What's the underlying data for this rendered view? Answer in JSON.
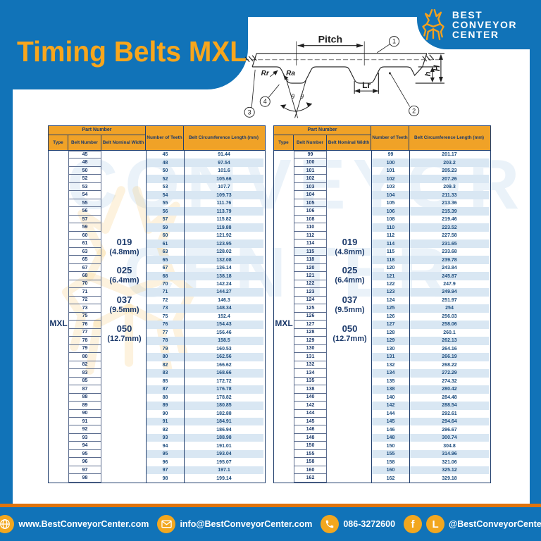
{
  "page": {
    "title": "Timing Belts MXL"
  },
  "brand": {
    "line1": "BEST",
    "line2": "CONVEYOR",
    "line3": "CENTER"
  },
  "diagram": {
    "labels": {
      "pitch": "Pitch",
      "rr": "Rr",
      "ra": "Ra",
      "lr": "Lr",
      "big_h": "H",
      "small_h": "h",
      "theta": "θ"
    },
    "callouts": [
      "1",
      "2",
      "3",
      "4"
    ]
  },
  "table_header": {
    "part_number": "Part Number",
    "type": "Type",
    "belt_number": "Belt Number",
    "belt_nominal_width": "Belt Nominal Width",
    "number_of_teeth": "Number of Teeth",
    "belt_circumference": "Belt Circumference Length (mm)"
  },
  "type_label": "MXL",
  "widths": [
    {
      "code": "019",
      "mm": "(4.8mm)"
    },
    {
      "code": "025",
      "mm": "(6.4mm)"
    },
    {
      "code": "037",
      "mm": "(9.5mm)"
    },
    {
      "code": "050",
      "mm": "(12.7mm)"
    }
  ],
  "tables": [
    {
      "rows": [
        [
          45,
          "91.44"
        ],
        [
          48,
          "97.54"
        ],
        [
          50,
          "101.6"
        ],
        [
          52,
          "105.66"
        ],
        [
          53,
          "107.7"
        ],
        [
          54,
          "109.73"
        ],
        [
          55,
          "111.76"
        ],
        [
          56,
          "113.79"
        ],
        [
          57,
          "115.82"
        ],
        [
          59,
          "119.88"
        ],
        [
          60,
          "121.92"
        ],
        [
          61,
          "123.95"
        ],
        [
          63,
          "128.02"
        ],
        [
          65,
          "132.08"
        ],
        [
          67,
          "136.14"
        ],
        [
          68,
          "138.18"
        ],
        [
          70,
          "142.24"
        ],
        [
          71,
          "144.27"
        ],
        [
          72,
          "146.3"
        ],
        [
          73,
          "148.34"
        ],
        [
          75,
          "152.4"
        ],
        [
          76,
          "154.43"
        ],
        [
          77,
          "156.46"
        ],
        [
          78,
          "158.5"
        ],
        [
          79,
          "160.53"
        ],
        [
          80,
          "162.56"
        ],
        [
          82,
          "166.62"
        ],
        [
          83,
          "168.66"
        ],
        [
          85,
          "172.72"
        ],
        [
          87,
          "176.78"
        ],
        [
          88,
          "178.82"
        ],
        [
          89,
          "180.85"
        ],
        [
          90,
          "182.88"
        ],
        [
          91,
          "184.91"
        ],
        [
          92,
          "186.94"
        ],
        [
          93,
          "188.98"
        ],
        [
          94,
          "191.01"
        ],
        [
          95,
          "193.04"
        ],
        [
          96,
          "195.07"
        ],
        [
          97,
          "197.1"
        ],
        [
          98,
          "199.14"
        ]
      ]
    },
    {
      "rows": [
        [
          99,
          "201.17"
        ],
        [
          100,
          "203.2"
        ],
        [
          101,
          "205.23"
        ],
        [
          102,
          "207.26"
        ],
        [
          103,
          "209.3"
        ],
        [
          104,
          "211.33"
        ],
        [
          105,
          "213.36"
        ],
        [
          106,
          "215.39"
        ],
        [
          108,
          "219.46"
        ],
        [
          110,
          "223.52"
        ],
        [
          112,
          "227.58"
        ],
        [
          114,
          "231.65"
        ],
        [
          115,
          "233.68"
        ],
        [
          118,
          "239.78"
        ],
        [
          120,
          "243.84"
        ],
        [
          121,
          "245.87"
        ],
        [
          122,
          "247.9"
        ],
        [
          123,
          "249.94"
        ],
        [
          124,
          "251.97"
        ],
        [
          125,
          "254"
        ],
        [
          126,
          "256.03"
        ],
        [
          127,
          "258.06"
        ],
        [
          128,
          "260.1"
        ],
        [
          129,
          "262.13"
        ],
        [
          130,
          "264.16"
        ],
        [
          131,
          "266.19"
        ],
        [
          132,
          "268.22"
        ],
        [
          134,
          "272.29"
        ],
        [
          135,
          "274.32"
        ],
        [
          138,
          "280.42"
        ],
        [
          140,
          "284.48"
        ],
        [
          142,
          "288.54"
        ],
        [
          144,
          "292.61"
        ],
        [
          145,
          "294.64"
        ],
        [
          146,
          "296.67"
        ],
        [
          148,
          "300.74"
        ],
        [
          150,
          "304.8"
        ],
        [
          155,
          "314.96"
        ],
        [
          158,
          "321.06"
        ],
        [
          160,
          "325.12"
        ],
        [
          162,
          "329.18"
        ]
      ]
    }
  ],
  "footer": {
    "website": "www.BestConveyorCenter.com",
    "email": "info@BestConveyorCenter.com",
    "phone": "086-3272600",
    "social_handle": "@BestConveyorCenter"
  },
  "watermark": {
    "line1": "CONVEYOR",
    "line2": "CENTER"
  },
  "colors": {
    "blue": "#1173b8",
    "gold_header": "#f0a227",
    "title_yellow": "#f8a61c",
    "navy_text": "#1c3a6b",
    "row_stripe": "#d9e7f3",
    "footer_orange_line": "#e0740d",
    "icon_yellow": "#f2a71f"
  }
}
